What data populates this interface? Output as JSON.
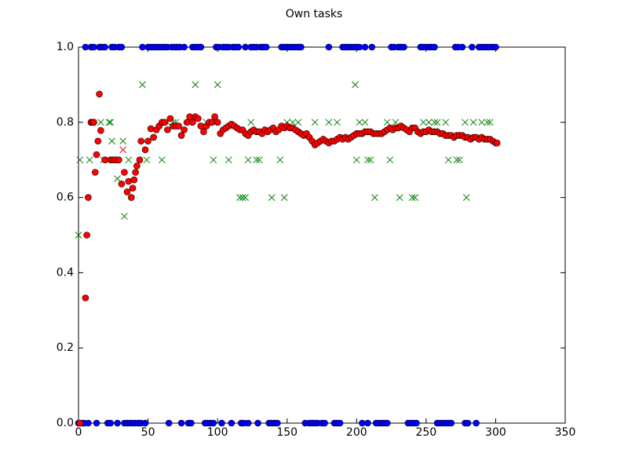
{
  "chart_data": {
    "type": "scatter",
    "title": "Own tasks",
    "xlim": [
      0,
      350
    ],
    "xticks": [
      0,
      50,
      100,
      150,
      200,
      250,
      300,
      350
    ],
    "ylim": [
      0,
      1
    ],
    "yticks": [
      {
        "value": 0,
        "label": "0.0"
      },
      {
        "value": 0.2,
        "label": "0.2"
      },
      {
        "value": 0.4,
        "label": "0.4"
      },
      {
        "value": 0.6,
        "label": "0.6"
      },
      {
        "value": 0.8,
        "label": "0.8"
      },
      {
        "value": 1,
        "label": "1.0"
      }
    ],
    "series": [
      {
        "color": "#0000ff",
        "marker": "circle",
        "x": [
          5,
          9,
          11,
          15,
          17,
          19,
          24,
          26,
          29,
          31,
          46,
          50,
          52,
          54,
          56,
          58,
          60,
          62,
          64,
          67,
          69,
          71,
          73,
          76,
          82,
          84,
          86,
          88,
          99,
          101,
          104,
          106,
          108,
          111,
          113,
          115,
          120,
          124,
          126,
          128,
          131,
          133,
          135,
          146,
          148,
          150,
          152,
          154,
          156,
          158,
          160,
          180,
          190,
          192,
          194,
          196,
          198,
          200,
          202,
          206,
          211,
          225,
          227,
          230,
          232,
          234,
          246,
          248,
          250,
          252,
          254,
          256,
          271,
          273,
          276,
          283,
          288,
          290,
          292,
          294,
          296,
          298,
          300
        ],
        "values": [
          1,
          1,
          1,
          1,
          1,
          1,
          1,
          1,
          1,
          1,
          1,
          1,
          1,
          1,
          1,
          1,
          1,
          1,
          1,
          1,
          1,
          1,
          1,
          1,
          1,
          1,
          1,
          1,
          1,
          1,
          1,
          1,
          1,
          1,
          1,
          1,
          1,
          1,
          1,
          1,
          1,
          1,
          1,
          1,
          1,
          1,
          1,
          1,
          1,
          1,
          1,
          1,
          1,
          1,
          1,
          1,
          1,
          1,
          1,
          1,
          1,
          1,
          1,
          1,
          1,
          1,
          1,
          1,
          1,
          1,
          1,
          1,
          1,
          1,
          1,
          1,
          1,
          1,
          1,
          1,
          1,
          1,
          1
        ]
      },
      {
        "color": "#0000ff",
        "marker": "circle",
        "x": [
          0,
          2,
          4,
          7,
          13,
          21,
          23,
          28,
          33,
          35,
          37,
          39,
          41,
          43,
          45,
          48,
          65,
          74,
          79,
          81,
          91,
          93,
          95,
          97,
          103,
          110,
          117,
          119,
          122,
          129,
          137,
          139,
          141,
          143,
          163,
          166,
          168,
          170,
          172,
          175,
          177,
          184,
          186,
          188,
          204,
          208,
          214,
          216,
          218,
          220,
          222,
          237,
          239,
          241,
          243,
          258,
          260,
          262,
          264,
          266,
          268,
          278,
          280,
          286
        ],
        "values": [
          0,
          0,
          0,
          0,
          0,
          0,
          0,
          0,
          0,
          0,
          0,
          0,
          0,
          0,
          0,
          0,
          0,
          0,
          0,
          0,
          0,
          0,
          0,
          0,
          0,
          0,
          0,
          0,
          0,
          0,
          0,
          0,
          0,
          0,
          0,
          0,
          0,
          0,
          0,
          0,
          0,
          0,
          0,
          0,
          0,
          0,
          0,
          0,
          0,
          0,
          0,
          0,
          0,
          0,
          0,
          0,
          0,
          0,
          0,
          0,
          0,
          0,
          0,
          0
        ]
      },
      {
        "color": "#008000",
        "marker": "x",
        "x": [
          0,
          1,
          8,
          10,
          16,
          18,
          22,
          23,
          24,
          28,
          32,
          33,
          36,
          46,
          49,
          60,
          64,
          68,
          70,
          84,
          92,
          97,
          100,
          108,
          116,
          118,
          120,
          122,
          124,
          128,
          130,
          139,
          145,
          148,
          150,
          154,
          158,
          170,
          180,
          186,
          199,
          200,
          202,
          206,
          208,
          210,
          213,
          222,
          224,
          228,
          231,
          240,
          242,
          248,
          252,
          256,
          258,
          264,
          266,
          272,
          274,
          278,
          279,
          284,
          290,
          294,
          296
        ],
        "values": [
          0.5,
          0.7,
          0.7,
          0.8,
          0.8,
          0.7,
          0.8,
          0.8,
          0.75,
          0.65,
          0.75,
          0.55,
          0.7,
          0.9,
          0.7,
          0.7,
          0.8,
          0.8,
          0.8,
          0.9,
          0.8,
          0.7,
          0.9,
          0.7,
          0.6,
          0.6,
          0.6,
          0.7,
          0.8,
          0.7,
          0.7,
          0.6,
          0.7,
          0.6,
          0.8,
          0.8,
          0.8,
          0.8,
          0.8,
          0.8,
          0.9,
          0.7,
          0.8,
          0.8,
          0.7,
          0.7,
          0.6,
          0.8,
          0.7,
          0.8,
          0.6,
          0.6,
          0.6,
          0.8,
          0.8,
          0.8,
          0.8,
          0.8,
          0.7,
          0.7,
          0.7,
          0.8,
          0.6,
          0.8,
          0.8,
          0.8,
          0.8
        ]
      },
      {
        "color": "#ff0000",
        "marker": "x",
        "x": [
          32
        ],
        "values": [
          0.727
        ]
      },
      {
        "color": "#ff0000",
        "marker": "circle",
        "x": [
          1,
          5,
          6,
          7,
          9,
          10,
          11,
          12,
          13,
          14,
          15,
          16,
          19,
          23,
          25,
          27,
          29,
          31,
          33,
          35,
          36,
          38,
          39,
          40,
          41,
          42,
          44,
          45,
          48,
          50,
          52,
          54,
          56,
          58,
          60,
          62,
          64,
          66,
          68,
          70,
          72,
          74,
          76,
          78,
          80,
          82,
          84,
          86,
          88,
          90,
          92,
          94,
          96,
          98,
          100,
          102,
          104,
          106,
          108,
          110,
          112,
          114,
          116,
          118,
          120,
          122,
          124,
          126,
          128,
          130,
          132,
          134,
          136,
          138,
          140,
          142,
          144,
          146,
          148,
          150,
          152,
          154,
          156,
          158,
          160,
          162,
          164,
          166,
          168,
          170,
          172,
          174,
          176,
          178,
          180,
          182,
          184,
          186,
          188,
          190,
          192,
          194,
          196,
          198,
          200,
          202,
          204,
          206,
          208,
          210,
          212,
          214,
          216,
          218,
          220,
          222,
          224,
          226,
          228,
          230,
          232,
          234,
          236,
          238,
          240,
          242,
          244,
          246,
          248,
          250,
          252,
          254,
          256,
          258,
          260,
          262,
          264,
          266,
          268,
          270,
          272,
          274,
          276,
          278,
          280,
          282,
          284,
          286,
          288,
          290,
          292,
          294,
          296,
          298,
          300,
          301
        ],
        "values": [
          0,
          0.333,
          0.5,
          0.6,
          0.8,
          0.8,
          0.8,
          0.667,
          0.714,
          0.75,
          0.875,
          0.778,
          0.7,
          0.7,
          0.7,
          0.7,
          0.7,
          0.636,
          0.667,
          0.615,
          0.643,
          0.6,
          0.625,
          0.647,
          0.667,
          0.684,
          0.7,
          0.75,
          0.727,
          0.75,
          0.783,
          0.76,
          0.78,
          0.79,
          0.8,
          0.8,
          0.78,
          0.81,
          0.79,
          0.79,
          0.79,
          0.765,
          0.78,
          0.8,
          0.815,
          0.8,
          0.815,
          0.81,
          0.79,
          0.775,
          0.79,
          0.8,
          0.8,
          0.815,
          0.8,
          0.77,
          0.78,
          0.785,
          0.79,
          0.795,
          0.79,
          0.785,
          0.78,
          0.78,
          0.77,
          0.765,
          0.775,
          0.78,
          0.775,
          0.775,
          0.77,
          0.78,
          0.775,
          0.78,
          0.785,
          0.775,
          0.78,
          0.79,
          0.785,
          0.79,
          0.785,
          0.785,
          0.78,
          0.775,
          0.77,
          0.765,
          0.77,
          0.76,
          0.75,
          0.74,
          0.745,
          0.75,
          0.755,
          0.75,
          0.745,
          0.75,
          0.75,
          0.755,
          0.76,
          0.755,
          0.76,
          0.755,
          0.76,
          0.765,
          0.77,
          0.77,
          0.77,
          0.775,
          0.775,
          0.775,
          0.77,
          0.77,
          0.77,
          0.77,
          0.775,
          0.78,
          0.785,
          0.78,
          0.785,
          0.785,
          0.79,
          0.785,
          0.78,
          0.775,
          0.785,
          0.785,
          0.775,
          0.77,
          0.775,
          0.775,
          0.78,
          0.775,
          0.775,
          0.775,
          0.77,
          0.77,
          0.765,
          0.765,
          0.765,
          0.76,
          0.765,
          0.765,
          0.765,
          0.76,
          0.76,
          0.755,
          0.76,
          0.76,
          0.755,
          0.76,
          0.755,
          0.755,
          0.755,
          0.75,
          0.745,
          0.745
        ]
      }
    ]
  }
}
